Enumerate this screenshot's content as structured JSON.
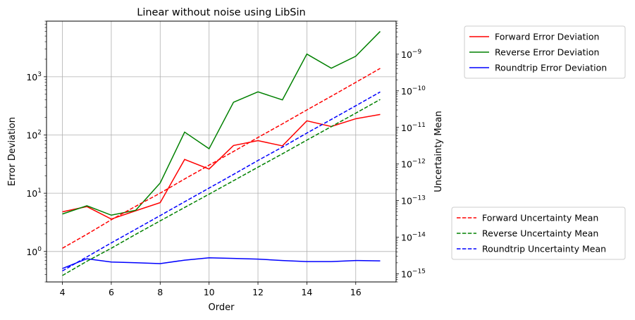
{
  "chart_data": {
    "type": "line",
    "title": "Linear without noise using LibSin",
    "xlabel": "Order",
    "ylabel_left": "Error Deviation",
    "ylabel_right": "Uncertainty Mean",
    "x": [
      4,
      5,
      6,
      7,
      8,
      9,
      10,
      11,
      12,
      13,
      14,
      15,
      16,
      17
    ],
    "xlim": [
      3.35,
      17.65
    ],
    "xticks": [
      4,
      6,
      8,
      10,
      12,
      14,
      16
    ],
    "y_left_scale": "log",
    "y_left_lim": [
      0.3,
      9000
    ],
    "y_left_ticks": [
      {
        "value": 1,
        "label": "10",
        "exp": "0"
      },
      {
        "value": 10,
        "label": "10",
        "exp": "1"
      },
      {
        "value": 100,
        "label": "10",
        "exp": "2"
      },
      {
        "value": 1000,
        "label": "10",
        "exp": "3"
      }
    ],
    "y_right_scale": "log",
    "y_right_lim": [
      6e-16,
      8e-09
    ],
    "y_right_ticks": [
      {
        "value": 1e-15,
        "label": "10",
        "exp": "−15"
      },
      {
        "value": 1e-14,
        "label": "10",
        "exp": "−14"
      },
      {
        "value": 1e-13,
        "label": "10",
        "exp": "−13"
      },
      {
        "value": 1e-12,
        "label": "10",
        "exp": "−12"
      },
      {
        "value": 1e-11,
        "label": "10",
        "exp": "−11"
      },
      {
        "value": 1e-10,
        "label": "10",
        "exp": "−10"
      },
      {
        "value": 1e-09,
        "label": "10",
        "exp": "−9"
      }
    ],
    "grid": true,
    "series_left": [
      {
        "name": "Forward Error Deviation",
        "color": "#ff0000",
        "style": "solid",
        "values": [
          4.8,
          5.9,
          3.6,
          5.0,
          6.9,
          38,
          26,
          66,
          80,
          65,
          175,
          140,
          190,
          225
        ]
      },
      {
        "name": "Reverse Error Deviation",
        "color": "#008000",
        "style": "solid",
        "values": [
          4.4,
          6.1,
          4.2,
          5.1,
          15,
          112,
          58,
          365,
          550,
          400,
          2450,
          1400,
          2250,
          6000
        ]
      },
      {
        "name": "Roundtrip Error Deviation",
        "color": "#0000ff",
        "style": "solid",
        "values": [
          0.51,
          0.75,
          0.66,
          0.64,
          0.62,
          0.71,
          0.78,
          0.76,
          0.74,
          0.7,
          0.67,
          0.67,
          0.7,
          0.69
        ]
      }
    ],
    "series_right": [
      {
        "name": "Forward Uncertainty Mean",
        "color": "#ff0000",
        "style": "dashed",
        "values": [
          5e-15,
          1.2e-14,
          3e-14,
          7e-14,
          1.6e-13,
          3.9e-13,
          9.3e-13,
          2.2e-12,
          5.3e-12,
          1.25e-11,
          3e-11,
          7.1e-11,
          1.7e-10,
          4.1e-10
        ]
      },
      {
        "name": "Reverse Uncertainty Mean",
        "color": "#008000",
        "style": "dashed",
        "values": [
          9e-16,
          2.2e-15,
          5e-15,
          1.2e-14,
          2.8e-14,
          6.5e-14,
          1.5e-13,
          3.5e-13,
          8.2e-13,
          1.9e-12,
          4.5e-12,
          1.05e-11,
          2.45e-11,
          5.8e-11
        ]
      },
      {
        "name": "Roundtrip Uncertainty Mean",
        "color": "#0000ff",
        "style": "dashed",
        "values": [
          1.2e-15,
          2.9e-15,
          7e-15,
          1.65e-14,
          3.9e-14,
          9.3e-14,
          2.2e-13,
          5.2e-13,
          1.25e-12,
          2.9e-12,
          7e-12,
          1.65e-11,
          3.9e-11,
          9.3e-11
        ]
      }
    ],
    "legend_top": "upper right, outside",
    "legend_bottom": "lower right, outside"
  }
}
